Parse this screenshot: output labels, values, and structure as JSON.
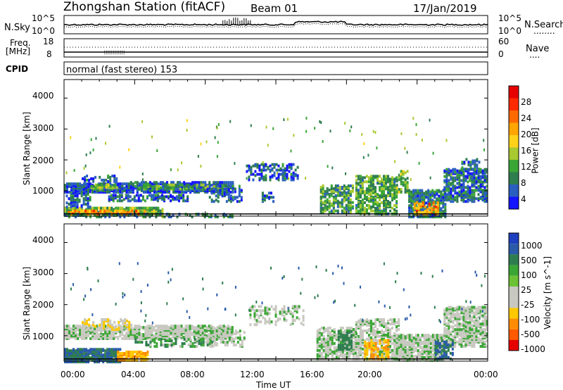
{
  "header": {
    "station": "Zhongshan Station (fitACF)",
    "beam": "Beam 01",
    "date": "17/Jan/2019"
  },
  "nsky_panel": {
    "left_label": "N.Sky",
    "right_label": "N.Search",
    "right_legend": "........",
    "left_ticks": [
      "10^5",
      "10^0"
    ],
    "right_ticks": [
      "10^5",
      "10^0"
    ]
  },
  "freq_panel": {
    "left_label_1": "Freq.",
    "left_label_2": "[MHz]",
    "right_label": "Nave",
    "right_legend": "....",
    "left_ticks": [
      "18",
      "8"
    ],
    "right_ticks": [
      "60",
      "0"
    ]
  },
  "cpid": {
    "label": "CPID",
    "mode_text": "normal (fast stereo)  153"
  },
  "x_axis": {
    "label": "Time UT",
    "tick_labels": [
      "00:00",
      "04:00",
      "08:00",
      "12:00",
      "16:00",
      "20:00",
      "00:00"
    ]
  },
  "colors": {
    "power_scale": [
      "#1414ff",
      "#2a5fbf",
      "#2e7d4f",
      "#3aa635",
      "#a8c930",
      "#ffd21a",
      "#ffa500",
      "#ff6a00",
      "#ff2a00",
      "#e60000"
    ],
    "velocity_scale": [
      "#1e3fbf",
      "#2a5aa8",
      "#2e7d4f",
      "#3aa635",
      "#6cc235",
      "#c8c8c0",
      "#ffc800",
      "#ff8c00",
      "#ff5a00",
      "#e60000"
    ]
  },
  "chart_data": [
    {
      "type": "heatmap",
      "title": "Power",
      "ylabel": "Slant Range [km]",
      "xlabel": "",
      "colorbar_label": "Power [dB]",
      "colorbar_ticks": [
        "28",
        "24",
        "20",
        "16",
        "12",
        "8",
        "4"
      ],
      "y_tick_labels": [
        "4000",
        "3000",
        "2000",
        "1000"
      ],
      "ylim": [
        180,
        4600
      ],
      "xlim_hours": [
        0,
        24
      ],
      "regions": [
        {
          "t0": 0.0,
          "t1": 5.6,
          "r0": 260,
          "r1": 520,
          "v": 12,
          "d": 0.85
        },
        {
          "t0": 0.2,
          "t1": 4.6,
          "r0": 300,
          "r1": 420,
          "v": 22,
          "d": 0.7
        },
        {
          "t0": 0.1,
          "t1": 1.5,
          "r0": 520,
          "r1": 1050,
          "v": 6,
          "d": 0.6
        },
        {
          "t0": 0.0,
          "t1": 3.6,
          "r0": 1000,
          "r1": 1300,
          "v": 5,
          "d": 0.8
        },
        {
          "t0": 1.5,
          "t1": 3.0,
          "r0": 1100,
          "r1": 1270,
          "v": 13,
          "d": 0.6
        },
        {
          "t0": 3.5,
          "t1": 9.5,
          "r0": 1000,
          "r1": 1350,
          "v": 5,
          "d": 0.75
        },
        {
          "t0": 4.0,
          "t1": 8.8,
          "r0": 1100,
          "r1": 1250,
          "v": 11,
          "d": 0.5
        },
        {
          "t0": 2.5,
          "t1": 7.0,
          "r0": 720,
          "r1": 930,
          "v": 5,
          "d": 0.5
        },
        {
          "t0": 0.0,
          "t1": 9.5,
          "r0": 200,
          "r1": 320,
          "v": 8,
          "d": 0.35
        },
        {
          "t0": 1.0,
          "t1": 3.0,
          "r0": 1300,
          "r1": 1550,
          "v": 5,
          "d": 0.35
        },
        {
          "t0": 8.2,
          "t1": 10.0,
          "r0": 700,
          "r1": 1200,
          "v": 6,
          "d": 0.35
        },
        {
          "t0": 10.3,
          "t1": 13.2,
          "r0": 1400,
          "r1": 1900,
          "v": 5,
          "d": 0.35
        },
        {
          "t0": 11.2,
          "t1": 11.9,
          "r0": 700,
          "r1": 1000,
          "v": 6,
          "d": 0.5
        },
        {
          "t0": 14.5,
          "t1": 16.4,
          "r0": 350,
          "r1": 1250,
          "v": 10,
          "d": 0.6
        },
        {
          "t0": 16.5,
          "t1": 18.8,
          "r0": 300,
          "r1": 1550,
          "v": 11,
          "d": 0.55
        },
        {
          "t0": 18.8,
          "t1": 19.5,
          "r0": 1000,
          "r1": 1700,
          "v": 12,
          "d": 0.4
        },
        {
          "t0": 19.5,
          "t1": 21.6,
          "r0": 200,
          "r1": 1100,
          "v": 7,
          "d": 0.75
        },
        {
          "t0": 19.8,
          "t1": 21.2,
          "r0": 300,
          "r1": 700,
          "v": 22,
          "d": 0.5
        },
        {
          "t0": 21.5,
          "t1": 24.0,
          "r0": 700,
          "r1": 1750,
          "v": 6,
          "d": 0.6
        },
        {
          "t0": 22.5,
          "t1": 23.5,
          "r0": 1700,
          "r1": 2100,
          "v": 7,
          "d": 0.4
        }
      ]
    },
    {
      "type": "heatmap",
      "title": "Velocity",
      "ylabel": "Slant Range [km]",
      "xlabel": "Time UT",
      "colorbar_label": "Velocity [m s^-1]",
      "colorbar_ticks": [
        "1000",
        "500",
        "100",
        "25",
        "-25",
        "-100",
        "-500",
        "-1000"
      ],
      "y_tick_labels": [
        "4000",
        "3000",
        "2000",
        "1000"
      ],
      "ylim": [
        180,
        4600
      ],
      "xlim_hours": [
        0,
        24
      ],
      "regions": [
        {
          "t0": 0.0,
          "t1": 3.2,
          "r0": 200,
          "r1": 650,
          "v": 300,
          "d": 0.85
        },
        {
          "t0": 3.0,
          "t1": 4.8,
          "r0": 250,
          "r1": 550,
          "v": -300,
          "d": 0.7
        },
        {
          "t0": 0.0,
          "t1": 9.5,
          "r0": 950,
          "r1": 1400,
          "v": 0,
          "d": 0.75
        },
        {
          "t0": 1.0,
          "t1": 3.8,
          "r0": 1250,
          "r1": 1600,
          "v": -60,
          "d": 0.45
        },
        {
          "t0": 4.0,
          "t1": 8.5,
          "r0": 700,
          "r1": 950,
          "v": 60,
          "d": 0.4
        },
        {
          "t0": 8.0,
          "t1": 10.2,
          "r0": 700,
          "r1": 1200,
          "v": 0,
          "d": 0.35
        },
        {
          "t0": 10.5,
          "t1": 13.5,
          "r0": 1400,
          "r1": 2000,
          "v": 0,
          "d": 0.3
        },
        {
          "t0": 14.3,
          "t1": 16.5,
          "r0": 300,
          "r1": 1300,
          "v": 0,
          "d": 0.6
        },
        {
          "t0": 15.5,
          "t1": 16.3,
          "r0": 600,
          "r1": 1200,
          "v": 200,
          "d": 0.5
        },
        {
          "t0": 16.5,
          "t1": 19.0,
          "r0": 300,
          "r1": 1600,
          "v": 0,
          "d": 0.5
        },
        {
          "t0": 17.0,
          "t1": 18.4,
          "r0": 300,
          "r1": 900,
          "v": -300,
          "d": 0.45
        },
        {
          "t0": 18.8,
          "t1": 21.5,
          "r0": 250,
          "r1": 1100,
          "v": 0,
          "d": 0.8
        },
        {
          "t0": 21.5,
          "t1": 24.0,
          "r0": 700,
          "r1": 2000,
          "v": 0,
          "d": 0.65
        },
        {
          "t0": 21.0,
          "t1": 22.0,
          "r0": 300,
          "r1": 900,
          "v": 300,
          "d": 0.4
        }
      ]
    }
  ]
}
